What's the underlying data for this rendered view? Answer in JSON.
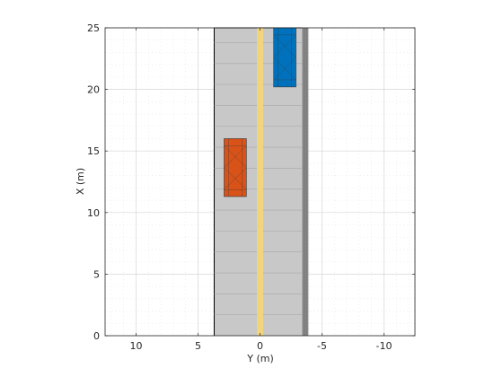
{
  "chart_data": {
    "type": "scatter",
    "xlabel": "Y (m)",
    "ylabel": "X (m)",
    "x_axis_reversed": true,
    "xlim": [
      12.5,
      -12.5
    ],
    "ylim": [
      0,
      25
    ],
    "x_ticks": [
      10,
      5,
      0,
      -5,
      -10
    ],
    "x_tick_labels": [
      "10",
      "5",
      "0",
      "-5",
      "-10"
    ],
    "y_ticks": [
      0,
      5,
      10,
      15,
      20,
      25
    ],
    "y_tick_labels": [
      "0",
      "5",
      "10",
      "15",
      "20",
      "25"
    ],
    "grid": true,
    "minor_grid": true,
    "road": {
      "y_left": 3.7,
      "y_right": -3.9,
      "x_start": 0,
      "x_end": 25,
      "lane_mark_lines_x": [
        1.7,
        3.4,
        5.1,
        6.8,
        8.5,
        10.2,
        11.9,
        13.6,
        15.3,
        17.0,
        18.7,
        20.4,
        22.1,
        23.8
      ],
      "center_line_y": 0,
      "center_line_width_m": 0.5,
      "barrier_y_start": -3.4,
      "barrier_y_end": -3.9
    },
    "vehicles": [
      {
        "name": "",
        "color": "#D95319",
        "y_left": 2.9,
        "y_right": 1.1,
        "x_bottom": 11.3,
        "x_top": 16.0
      },
      {
        "name": "",
        "color": "#0072BD",
        "y_left": -1.1,
        "y_right": -2.9,
        "x_bottom": 20.2,
        "x_top": 25.0
      }
    ]
  },
  "colors": {
    "road": "#C8C8C8",
    "center_line": "#F2D47A",
    "barrier": "#8C8C8C",
    "grid": "#DCDCDC",
    "axis": "#262626"
  }
}
